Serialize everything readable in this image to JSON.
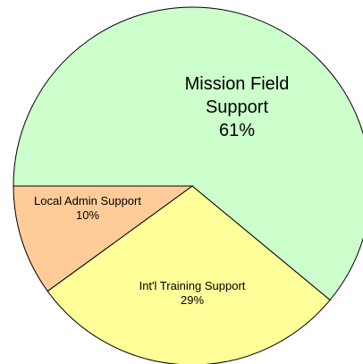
{
  "chart_data": {
    "type": "pie",
    "title": "",
    "slices": [
      {
        "label_lines": [
          "Mission Field",
          "Support"
        ],
        "value": 61,
        "value_label": "61%",
        "color": "#ccffcc"
      },
      {
        "label_lines": [
          "Int'l Training Support"
        ],
        "value": 29,
        "value_label": "29%",
        "color": "#ffff99"
      },
      {
        "label_lines": [
          "Local Admin Support"
        ],
        "value": 10,
        "value_label": "10%",
        "color": "#ffcc99"
      }
    ],
    "legend": "none"
  }
}
